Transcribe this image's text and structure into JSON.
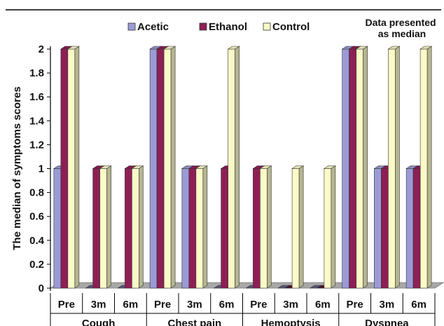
{
  "chart_data": {
    "type": "bar",
    "ylabel": "The median of symptoms scores",
    "ylim": [
      0,
      2
    ],
    "yticks": [
      "0",
      "0.2",
      "0.4",
      "0.6",
      "0.8",
      "1",
      "1.2",
      "1.4",
      "1.6",
      "1.8",
      "2"
    ],
    "note_lines": [
      "Data presented",
      "as median"
    ],
    "legend_position": "top",
    "grid": false,
    "groups": [
      "Cough",
      "Chest pain",
      "Hemoptysis",
      "Dyspnea"
    ],
    "categories": [
      "Pre",
      "3m",
      "6m",
      "Pre",
      "3m",
      "6m",
      "Pre",
      "3m",
      "6m",
      "Pre",
      "3m",
      "6m"
    ],
    "series": [
      {
        "name": "Acetic",
        "color": "#9A9BD6",
        "values": [
          1,
          0,
          0,
          2,
          1,
          0,
          0,
          0,
          0,
          2,
          1,
          1
        ]
      },
      {
        "name": "Ethanol",
        "color": "#8E1F56",
        "values": [
          2,
          1,
          1,
          2,
          1,
          1,
          1,
          0,
          0,
          2,
          1,
          1
        ]
      },
      {
        "name": "Control",
        "color": "#FBFBC8",
        "values": [
          2,
          1,
          1,
          2,
          1,
          2,
          1,
          1,
          1,
          2,
          2,
          2
        ]
      }
    ]
  }
}
